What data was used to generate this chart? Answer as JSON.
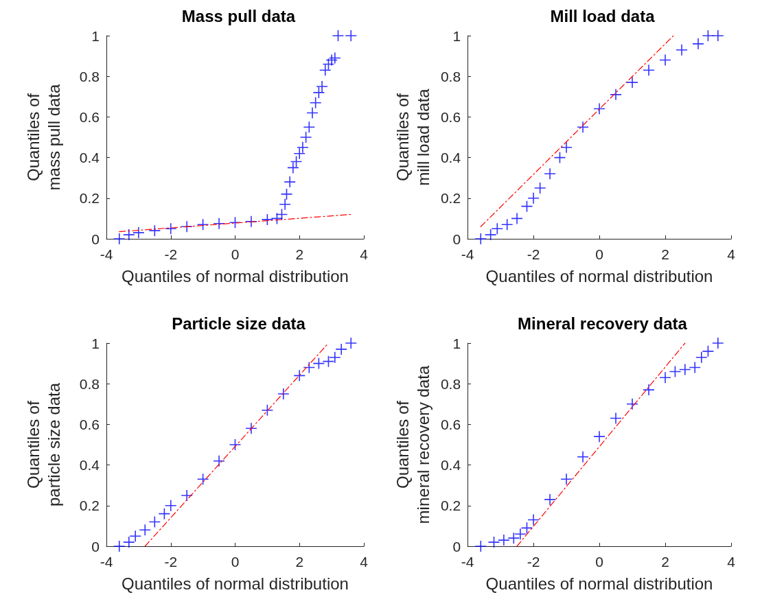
{
  "chart_data": [
    {
      "type": "scatter",
      "title": "Mass pull data",
      "xlabel": "Quantiles of normal distribution",
      "ylabel": "Quantiles of\nmass pull data",
      "xlim": [
        -4,
        4
      ],
      "xticks": [
        -4,
        -2,
        0,
        2,
        4
      ],
      "ylim": [
        0,
        1
      ],
      "yticks": [
        0,
        0.2,
        0.4,
        0.6,
        0.8,
        1
      ],
      "grid": false,
      "marker": "cross",
      "series": [
        {
          "color": "#0000ff",
          "x": [
            -3.6,
            -3.3,
            -3.0,
            -2.5,
            -2.0,
            -1.5,
            -1.0,
            -0.5,
            0,
            0.5,
            1.0,
            1.3,
            1.45,
            1.55,
            1.6,
            1.7,
            1.8,
            1.9,
            2.0,
            2.1,
            2.2,
            2.3,
            2.4,
            2.5,
            2.6,
            2.7,
            2.8,
            2.9,
            3.0,
            3.1,
            3.2,
            3.6
          ],
          "values": [
            0,
            0.02,
            0.03,
            0.04,
            0.05,
            0.06,
            0.07,
            0.075,
            0.08,
            0.085,
            0.095,
            0.1,
            0.12,
            0.17,
            0.22,
            0.28,
            0.35,
            0.38,
            0.42,
            0.45,
            0.5,
            0.55,
            0.62,
            0.67,
            0.72,
            0.75,
            0.83,
            0.86,
            0.88,
            0.89,
            1,
            1
          ]
        },
        {
          "type": "line",
          "color": "#ff0000",
          "marker": "none",
          "line_style": "dashed",
          "x": [
            -3.6,
            3.6
          ],
          "values": [
            0.035,
            0.12
          ]
        }
      ]
    },
    {
      "type": "scatter",
      "title": "Mill load data",
      "xlabel": "Quantiles of normal distribution",
      "ylabel": "Quantiles of\nmill load data",
      "xlim": [
        -4,
        4
      ],
      "xticks": [
        -4,
        -2,
        0,
        2,
        4
      ],
      "ylim": [
        0,
        1
      ],
      "yticks": [
        0,
        0.2,
        0.4,
        0.6,
        0.8,
        1
      ],
      "grid": false,
      "marker": "cross",
      "series": [
        {
          "color": "#0000ff",
          "x": [
            -3.6,
            -3.3,
            -3.1,
            -2.8,
            -2.5,
            -2.2,
            -2.0,
            -1.8,
            -1.5,
            -1.2,
            -1.0,
            -0.5,
            0,
            0.5,
            1.0,
            1.5,
            2.0,
            2.5,
            3.0,
            3.3,
            3.6
          ],
          "values": [
            0,
            0.02,
            0.05,
            0.07,
            0.1,
            0.16,
            0.2,
            0.25,
            0.32,
            0.4,
            0.45,
            0.55,
            0.64,
            0.71,
            0.77,
            0.83,
            0.88,
            0.93,
            0.96,
            1,
            1
          ]
        },
        {
          "type": "line",
          "color": "#ff0000",
          "marker": "none",
          "line_style": "dashed",
          "x": [
            -3.6,
            2.25
          ],
          "values": [
            0.06,
            1
          ]
        }
      ]
    },
    {
      "type": "scatter",
      "title": "Particle size data",
      "xlabel": "Quantiles of normal distribution",
      "ylabel": "Quantiles of\nparticle size data",
      "xlim": [
        -4,
        4
      ],
      "xticks": [
        -4,
        -2,
        0,
        2,
        4
      ],
      "ylim": [
        0,
        1
      ],
      "yticks": [
        0,
        0.2,
        0.4,
        0.6,
        0.8,
        1
      ],
      "grid": false,
      "marker": "cross",
      "series": [
        {
          "color": "#0000ff",
          "x": [
            -3.6,
            -3.3,
            -3.1,
            -2.8,
            -2.5,
            -2.2,
            -2.0,
            -1.5,
            -1.0,
            -0.5,
            0,
            0.5,
            1.0,
            1.5,
            2.0,
            2.3,
            2.6,
            2.9,
            3.1,
            3.3,
            3.6
          ],
          "values": [
            0,
            0.02,
            0.05,
            0.08,
            0.12,
            0.16,
            0.2,
            0.25,
            0.33,
            0.42,
            0.5,
            0.58,
            0.67,
            0.75,
            0.84,
            0.88,
            0.9,
            0.91,
            0.93,
            0.97,
            1
          ]
        },
        {
          "type": "line",
          "color": "#ff0000",
          "marker": "none",
          "line_style": "dashed",
          "x": [
            -2.8,
            2.9
          ],
          "values": [
            0,
            1
          ]
        }
      ]
    },
    {
      "type": "scatter",
      "title": "Mineral recovery data",
      "xlabel": "Quantiles of normal distribution",
      "ylabel": "Quantiles of\nmineral recovery data",
      "xlim": [
        -4,
        4
      ],
      "xticks": [
        -4,
        -2,
        0,
        2,
        4
      ],
      "ylim": [
        0,
        1
      ],
      "yticks": [
        0,
        0.2,
        0.4,
        0.6,
        0.8,
        1
      ],
      "grid": false,
      "marker": "cross",
      "series": [
        {
          "color": "#0000ff",
          "x": [
            -3.6,
            -3.2,
            -2.9,
            -2.6,
            -2.4,
            -2.2,
            -2.0,
            -1.5,
            -1.0,
            -0.5,
            0,
            0.5,
            1.0,
            1.5,
            2.0,
            2.3,
            2.6,
            2.9,
            3.1,
            3.3,
            3.6
          ],
          "values": [
            0,
            0.02,
            0.03,
            0.04,
            0.06,
            0.09,
            0.13,
            0.23,
            0.33,
            0.44,
            0.54,
            0.63,
            0.7,
            0.77,
            0.83,
            0.86,
            0.87,
            0.88,
            0.93,
            0.96,
            1
          ]
        },
        {
          "type": "line",
          "color": "#ff0000",
          "marker": "none",
          "line_style": "dashed",
          "x": [
            -2.5,
            2.6
          ],
          "values": [
            0,
            1
          ]
        }
      ]
    }
  ]
}
